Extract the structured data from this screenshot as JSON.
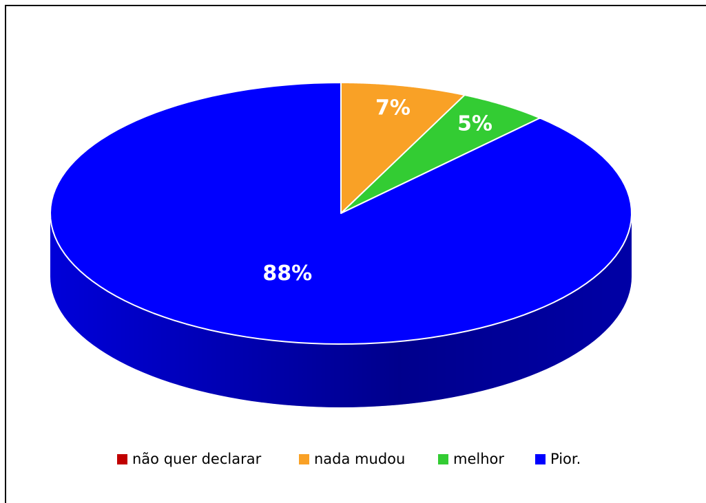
{
  "chart_data": {
    "type": "pie3d",
    "categories": [
      "não quer declarar",
      "nada mudou",
      "melhor",
      "Pior."
    ],
    "values": [
      0,
      7,
      5,
      88
    ],
    "value_labels": [
      null,
      "7%",
      "5%",
      "88%"
    ],
    "colors": [
      "#c00000",
      "#f9a126",
      "#33cc33",
      "#0000ff"
    ],
    "legend": "bottom"
  }
}
